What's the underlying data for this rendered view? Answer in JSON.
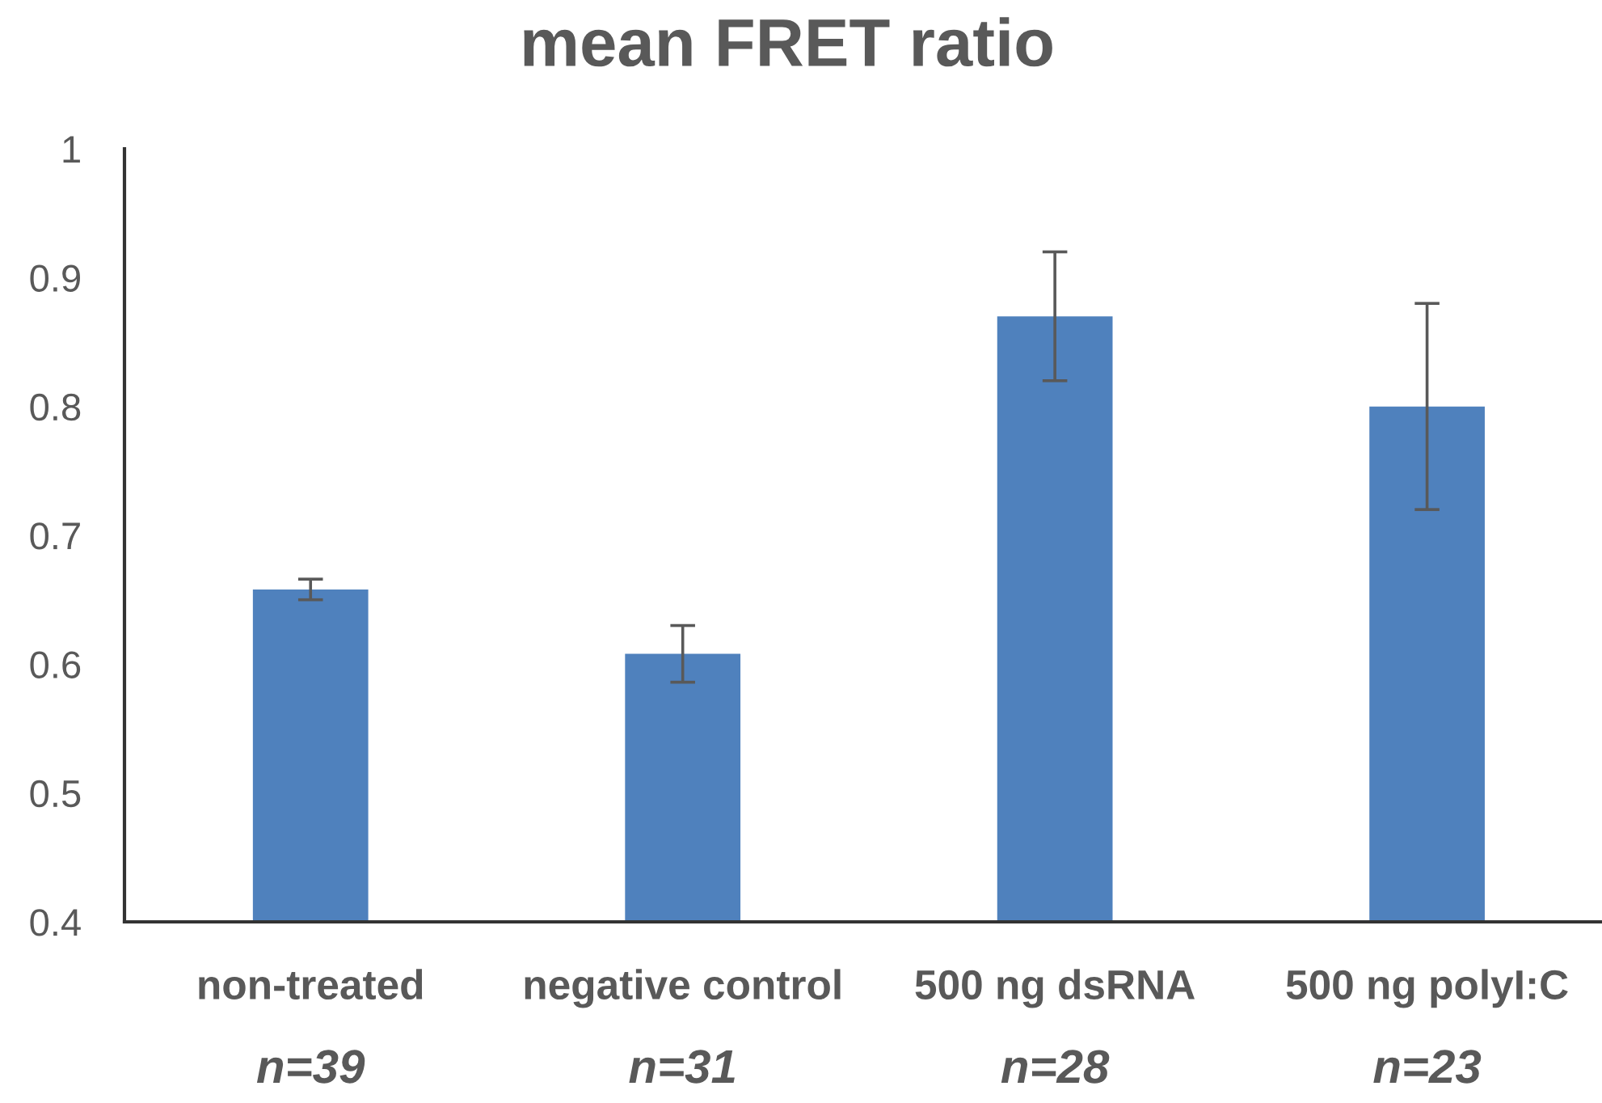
{
  "chart_data": {
    "type": "bar",
    "title": "mean FRET ratio",
    "categories": [
      "non-treated",
      "negative control",
      "500 ng dsRNA",
      "500 ng polyI:C"
    ],
    "values": [
      0.658,
      0.608,
      0.87,
      0.8
    ],
    "errors": [
      0.008,
      0.022,
      0.05,
      0.08
    ],
    "color": "#4f81bd",
    "ylim": [
      0.4,
      1
    ],
    "yticks": [
      0.4,
      0.5,
      0.6,
      0.7,
      0.8,
      0.9,
      1
    ],
    "grid": false,
    "legend": false,
    "annotations": [
      "n=39",
      "n=31",
      "n=28",
      "n=23"
    ]
  }
}
